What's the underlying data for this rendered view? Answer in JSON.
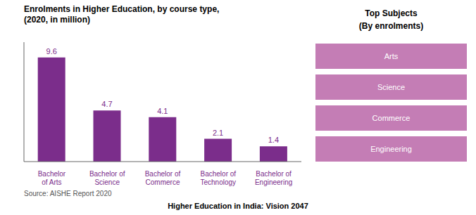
{
  "chart_data": {
    "type": "bar",
    "title": "Enrolments in Higher Education, by course type,",
    "subtitle": "(2020, in million)",
    "categories": [
      "Bachelor\nof Arts",
      "Bachelor of\nScience",
      "Bachelor of\nCommerce",
      "Bachelor of\nTechnology",
      "Bachelor of\nEngineering"
    ],
    "values": [
      9.6,
      4.7,
      4.1,
      2.1,
      1.4
    ],
    "color": "#7B2D8B",
    "ylim": [
      0,
      11
    ],
    "grid": false,
    "data_labels": true,
    "tick_labels": "x",
    "annotations": [
      "Source: AISHE Report 2020",
      "Higher Education in India: Vision 2047"
    ],
    "side_panel": {
      "title": "Top Subjects",
      "subtitle": "(By enrolments)",
      "labels": [
        "Arts",
        "Science",
        "Commerce",
        "Engineering"
      ],
      "color": "#C47DB5",
      "text_color": "#ffffff"
    }
  }
}
